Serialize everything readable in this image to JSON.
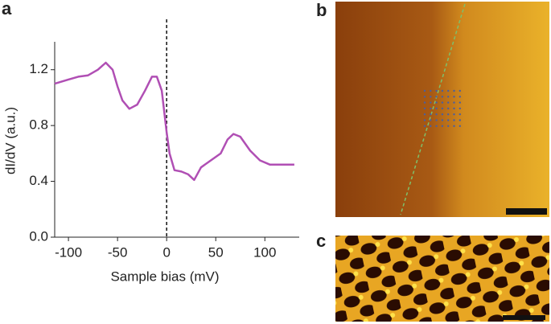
{
  "panel_labels": [
    "a",
    "b",
    "c"
  ],
  "chart_data": {
    "type": "line",
    "x_label": "Sample bias (mV)",
    "y_label": "dI/dV (a.u.)",
    "color": "#b04fb4",
    "x": [
      -114,
      -100,
      -90,
      -80,
      -70,
      -62,
      -55,
      -50,
      -45,
      -38,
      -30,
      -22,
      -15,
      -10,
      -5,
      0,
      3,
      8,
      15,
      22,
      28,
      35,
      45,
      55,
      62,
      68,
      75,
      85,
      95,
      105,
      115,
      130
    ],
    "values": [
      1.1,
      1.13,
      1.15,
      1.16,
      1.2,
      1.25,
      1.2,
      1.08,
      0.98,
      0.92,
      0.95,
      1.05,
      1.15,
      1.15,
      1.05,
      0.75,
      0.6,
      0.48,
      0.47,
      0.45,
      0.41,
      0.5,
      0.55,
      0.6,
      0.7,
      0.74,
      0.72,
      0.62,
      0.55,
      0.52,
      0.52,
      0.52
    ],
    "vline": 0,
    "xlim": [
      -114,
      135
    ],
    "ylim": [
      0,
      1.4
    ],
    "xticks": [
      -100,
      -50,
      0,
      50,
      100
    ],
    "yticks": [
      {
        "value": 0,
        "label": "0.0"
      },
      0.4,
      0.8,
      1.2
    ]
  }
}
